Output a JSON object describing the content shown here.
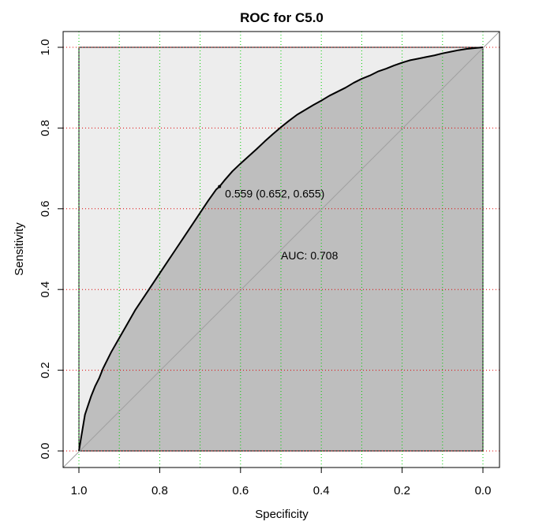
{
  "chart_data": {
    "type": "line",
    "title": "ROC for C5.0",
    "xlabel": "Specificity",
    "ylabel": "Sensitivity",
    "xlim": [
      1.0,
      0.0
    ],
    "ylim": [
      0.0,
      1.0
    ],
    "x_ticks": [
      "1.0",
      "0.8",
      "0.6",
      "0.4",
      "0.2",
      "0.0"
    ],
    "y_ticks": [
      "0.0",
      "0.2",
      "0.4",
      "0.6",
      "0.8",
      "1.0"
    ],
    "grid": "dotted",
    "grid_x_color": "#00cc00",
    "grid_y_color": "#dd0000",
    "fill_area_color": "#bebebe",
    "fill_square_color": "#ededed",
    "curve_color": "#000000",
    "diagonal_color": "#a0a0a0",
    "series": [
      {
        "specificity": [
          1.0,
          0.995,
          0.99,
          0.985,
          0.98,
          0.97,
          0.96,
          0.95,
          0.94,
          0.92,
          0.9,
          0.88,
          0.86,
          0.84,
          0.82,
          0.8,
          0.78,
          0.76,
          0.74,
          0.72,
          0.7,
          0.68,
          0.66,
          0.652,
          0.64,
          0.62,
          0.6,
          0.58,
          0.56,
          0.54,
          0.52,
          0.5,
          0.48,
          0.46,
          0.44,
          0.42,
          0.4,
          0.38,
          0.36,
          0.34,
          0.32,
          0.3,
          0.28,
          0.26,
          0.24,
          0.22,
          0.2,
          0.18,
          0.16,
          0.14,
          0.12,
          0.1,
          0.08,
          0.06,
          0.04,
          0.02,
          0.0
        ],
        "sensitivity": [
          0.0,
          0.03,
          0.06,
          0.09,
          0.105,
          0.135,
          0.16,
          0.18,
          0.205,
          0.245,
          0.28,
          0.315,
          0.35,
          0.38,
          0.41,
          0.44,
          0.47,
          0.5,
          0.53,
          0.56,
          0.59,
          0.62,
          0.648,
          0.655,
          0.67,
          0.693,
          0.712,
          0.73,
          0.748,
          0.767,
          0.785,
          0.802,
          0.818,
          0.833,
          0.845,
          0.857,
          0.868,
          0.88,
          0.89,
          0.9,
          0.912,
          0.922,
          0.93,
          0.94,
          0.947,
          0.955,
          0.962,
          0.968,
          0.972,
          0.976,
          0.98,
          0.985,
          0.989,
          0.993,
          0.996,
          0.998,
          1.0
        ]
      }
    ],
    "annotations": [
      {
        "text": "0.559 (0.652, 0.655)",
        "x": 0.652,
        "y": 0.655
      },
      {
        "text": "AUC: 0.708",
        "x": 0.5,
        "y": 0.5
      }
    ]
  }
}
